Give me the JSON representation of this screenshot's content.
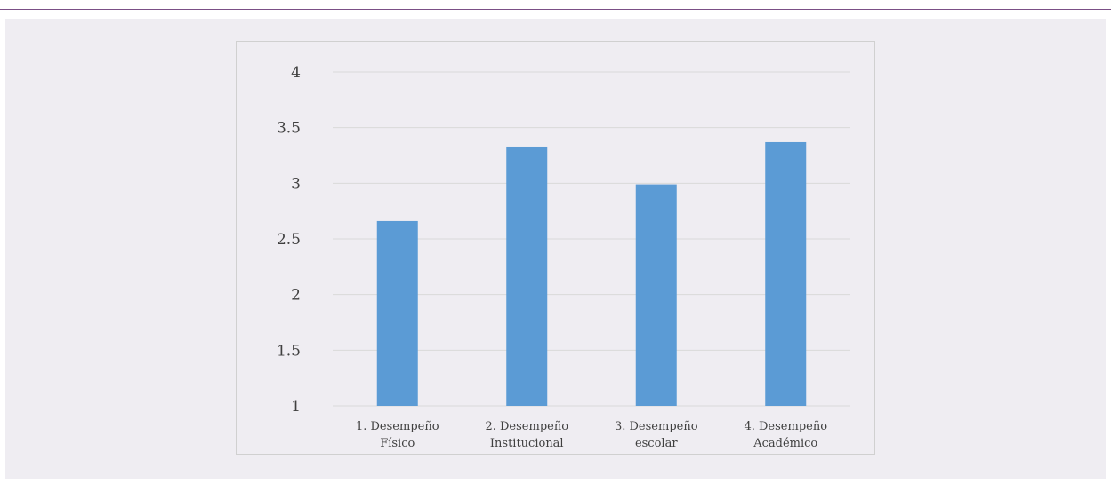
{
  "chart_data": {
    "type": "bar",
    "categories": [
      [
        "1. Desempeño",
        "Físico"
      ],
      [
        "2. Desempeño",
        "Institucional"
      ],
      [
        "3. Desempeño",
        "escolar"
      ],
      [
        "4. Desempeño",
        "Académico"
      ]
    ],
    "values": [
      2.66,
      3.33,
      2.99,
      3.37
    ],
    "ylim": [
      1,
      4
    ],
    "yticks": [
      "1",
      "1.5",
      "2",
      "2.5",
      "3",
      "3.5",
      "4"
    ],
    "ytick_values": [
      1,
      1.5,
      2,
      2.5,
      3,
      3.5,
      4
    ],
    "grid": true,
    "bar_color": "#5b9bd5",
    "grid_color": "#d9d9d9"
  }
}
